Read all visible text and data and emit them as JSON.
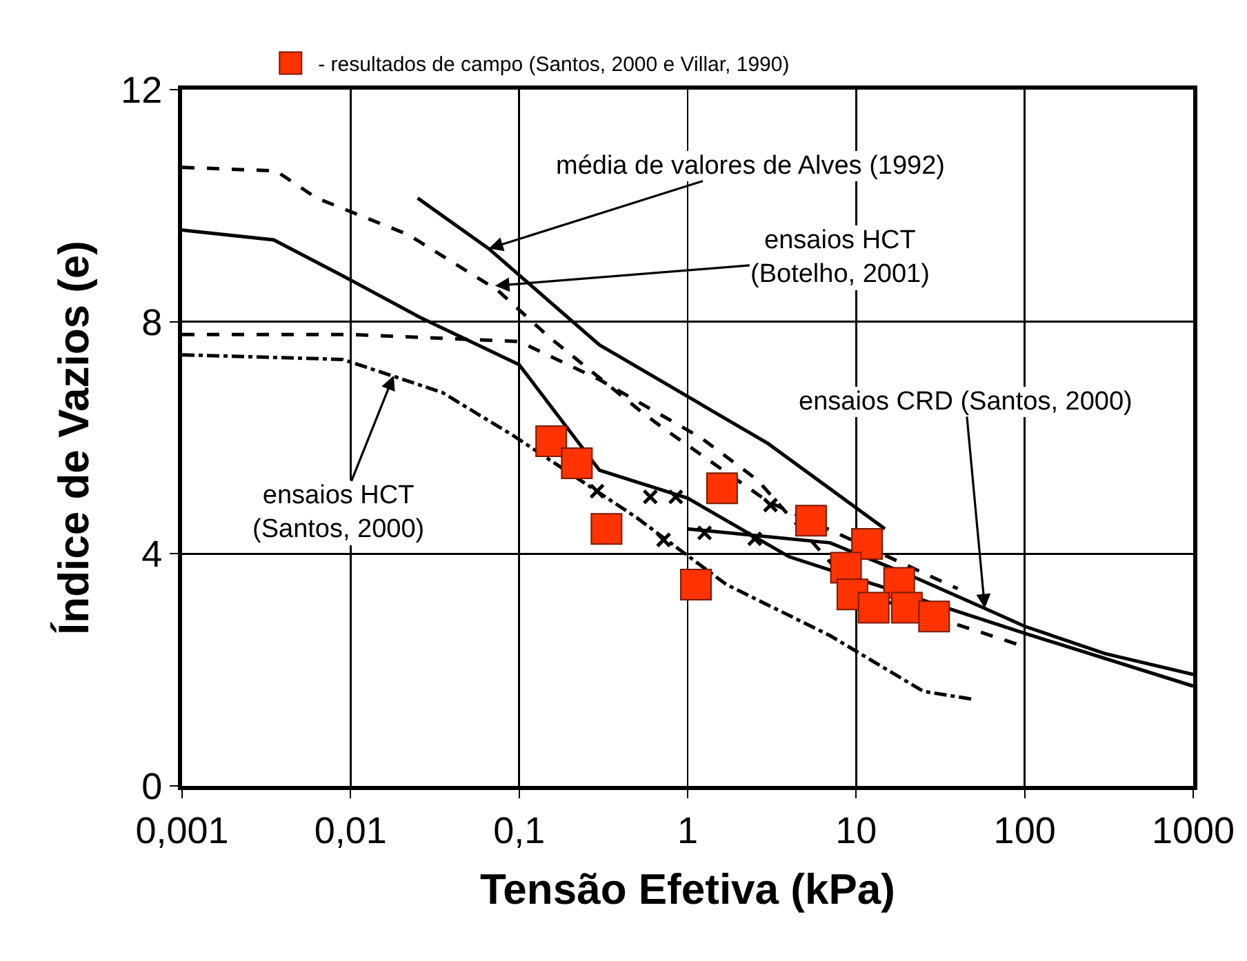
{
  "chart_data": {
    "type": "line",
    "xlabel": "Tensão Efetiva (kPa)",
    "ylabel": "Índice de Vazios (e)",
    "log": "x",
    "grid": true,
    "legend": "top",
    "xlim": [
      0.001,
      1000
    ],
    "xticks": [
      {
        "value": 0.001,
        "label": "0,001"
      },
      {
        "value": 0.01,
        "label": "0,01"
      },
      {
        "value": 0.1,
        "label": "0,1"
      },
      1,
      10,
      100,
      1000
    ],
    "ylim": [
      0,
      12
    ],
    "yticks": [
      0,
      4,
      8,
      12
    ],
    "series": [
      {
        "type": "line",
        "color": "#000000",
        "line_style": "solid",
        "x": [
          0.025,
          0.066,
          0.3,
          3,
          14.8
        ],
        "values": [
          10.13,
          9.26,
          7.6,
          5.9,
          4.43
        ]
      },
      {
        "type": "line",
        "color": "#000000",
        "line_style": "dashed",
        "x": [
          0.001,
          0.0036,
          0.0063,
          0.022,
          0.074,
          0.15,
          0.52,
          0.72,
          3,
          40
        ],
        "values": [
          10.66,
          10.6,
          10.13,
          9.5,
          8.55,
          7.74,
          6.47,
          6.16,
          4.9,
          3.4
        ]
      },
      {
        "type": "line",
        "color": "#000000",
        "line_style": "solid",
        "x": [
          0.001,
          0.0035,
          0.009,
          0.026,
          0.1,
          0.3,
          1,
          4,
          100,
          1000
        ],
        "values": [
          9.58,
          9.41,
          8.79,
          8.07,
          7.26,
          5.44,
          4.96,
          3.95,
          2.63,
          1.72
        ]
      },
      {
        "type": "line",
        "color": "#000000",
        "line_style": "dashed",
        "x": [
          0.001,
          0.01,
          0.1,
          0.3,
          1.2,
          2.6,
          10,
          100
        ],
        "values": [
          7.78,
          7.78,
          7.66,
          7.0,
          6.0,
          5.27,
          3.35,
          2.4
        ]
      },
      {
        "type": "line",
        "color": "#000000",
        "line_style": "dotted",
        "x": [
          0.001,
          0.009,
          0.035,
          0.092,
          0.5,
          1.7,
          7,
          25,
          50
        ],
        "values": [
          7.43,
          7.35,
          6.78,
          6.04,
          4.62,
          3.47,
          2.59,
          1.63,
          1.49
        ]
      },
      {
        "type": "line",
        "color": "#000000",
        "line_style": "solid",
        "x": [
          1,
          7,
          22,
          58,
          100,
          300,
          1000
        ],
        "values": [
          4.43,
          4.19,
          3.6,
          3.06,
          2.75,
          2.28,
          1.92
        ]
      },
      {
        "type": "scatter",
        "color": "#000000",
        "marker": "cross",
        "x": [
          0.29,
          0.6,
          0.85,
          0.72,
          1.26,
          3.1,
          2.5
        ],
        "values": [
          5.08,
          4.98,
          4.98,
          4.24,
          4.36,
          4.84,
          4.26
        ]
      },
      {
        "type": "scatter",
        "name": "- resultados de campo (Santos, 2000 e Villar, 1990)",
        "color": "#ff3300",
        "marker": "square",
        "x": [
          0.155,
          0.22,
          0.33,
          1.12,
          1.6,
          5.4,
          11.6,
          8.7,
          9.5,
          18,
          12.7,
          20,
          29
        ],
        "values": [
          5.94,
          5.56,
          4.43,
          3.47,
          5.13,
          4.57,
          4.17,
          3.76,
          3.3,
          3.5,
          3.07,
          3.07,
          2.92
        ]
      }
    ],
    "annotations": [
      {
        "text": "média de valores de Alves (1992)",
        "x": 0.066,
        "y": 9.26
      },
      {
        "text": "ensaios HCT\n(Botelho, 2001)",
        "x": 0.072,
        "y": 8.62
      },
      {
        "text": "ensaios CRD (Santos, 2000)",
        "x": 58,
        "y": 3.06
      },
      {
        "text": "ensaios HCT\n(Santos, 2000)",
        "x": 0.018,
        "y": 7.07
      }
    ]
  }
}
